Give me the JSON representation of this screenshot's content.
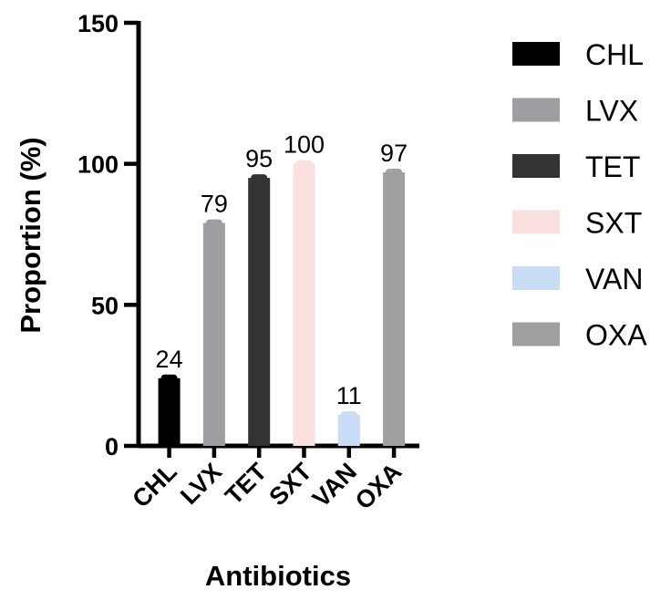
{
  "chart_data": {
    "type": "bar",
    "categories": [
      "CHL",
      "LVX",
      "TET",
      "SXT",
      "VAN",
      "OXA"
    ],
    "values": [
      24,
      79,
      95,
      100,
      11,
      97
    ],
    "data_labels": [
      "24",
      "79",
      "95",
      "100",
      "11",
      "97"
    ],
    "colors": [
      "#000000",
      "#9e9ea2",
      "#333333",
      "#fbe0e0",
      "#c9ddf7",
      "#a0a0a2"
    ],
    "title": "",
    "xlabel": "Antibiotics",
    "ylabel": "Proportion (%)",
    "ylim": [
      0,
      150
    ],
    "yticks": [
      0,
      50,
      100,
      150
    ],
    "ytick_labels": [
      "0",
      "50",
      "100",
      "150"
    ],
    "grid": false,
    "legend": {
      "placement": "right",
      "entries": [
        "CHL",
        "LVX",
        "TET",
        "SXT",
        "VAN",
        "OXA"
      ]
    }
  }
}
